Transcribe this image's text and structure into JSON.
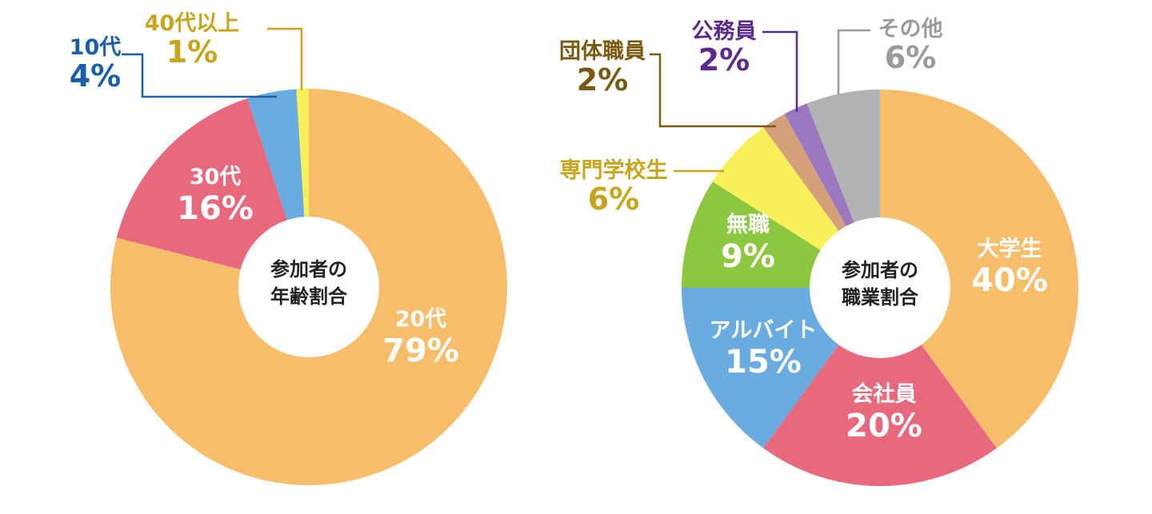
{
  "chart_data": [
    {
      "type": "pie",
      "variant": "donut",
      "title": "参加者の年齢割合",
      "center_label": [
        "参加者の",
        "年齢割合"
      ],
      "slices": [
        {
          "label": "20代",
          "value": 79,
          "display": "79%",
          "color": "#F6BE6A",
          "text_color": "#FFFFFF",
          "label_position": "inside"
        },
        {
          "label": "30代",
          "value": 16,
          "display": "16%",
          "color": "#E8687D",
          "text_color": "#FFFFFF",
          "label_position": "inside"
        },
        {
          "label": "10代",
          "value": 4,
          "display": "4%",
          "color": "#6AACDF",
          "text_color": "#1A5FA8",
          "label_position": "outside"
        },
        {
          "label": "40代以上",
          "value": 1,
          "display": "1%",
          "color": "#F8F05A",
          "text_color": "#C7A61E",
          "label_position": "outside"
        }
      ]
    },
    {
      "type": "pie",
      "variant": "donut",
      "title": "参加者の職業割合",
      "center_label": [
        "参加者の",
        "職業割合"
      ],
      "slices": [
        {
          "label": "大学生",
          "value": 40,
          "display": "40%",
          "color": "#F6BE6A",
          "text_color": "#FFFFFF",
          "label_position": "inside"
        },
        {
          "label": "会社員",
          "value": 20,
          "display": "20%",
          "color": "#E8687D",
          "text_color": "#FFFFFF",
          "label_position": "inside"
        },
        {
          "label": "アルバイト",
          "value": 15,
          "display": "15%",
          "color": "#6AACDF",
          "text_color": "#FFFFFF",
          "label_position": "inside"
        },
        {
          "label": "無職",
          "value": 9,
          "display": "9%",
          "color": "#8DC63F",
          "text_color": "#FFFFFF",
          "label_position": "inside"
        },
        {
          "label": "専門学校生",
          "value": 6,
          "display": "6%",
          "color": "#F8F05A",
          "text_color": "#C7A61E",
          "label_position": "outside"
        },
        {
          "label": "団体職員",
          "value": 2,
          "display": "2%",
          "color": "#D3A07A",
          "text_color": "#7A5A10",
          "label_position": "outside"
        },
        {
          "label": "公務員",
          "value": 2,
          "display": "2%",
          "color": "#9B78C0",
          "text_color": "#5B2A8C",
          "label_position": "outside"
        },
        {
          "label": "その他",
          "value": 6,
          "display": "6%",
          "color": "#B1B2B4",
          "text_color": "#9A9A9A",
          "label_position": "outside"
        }
      ]
    }
  ]
}
